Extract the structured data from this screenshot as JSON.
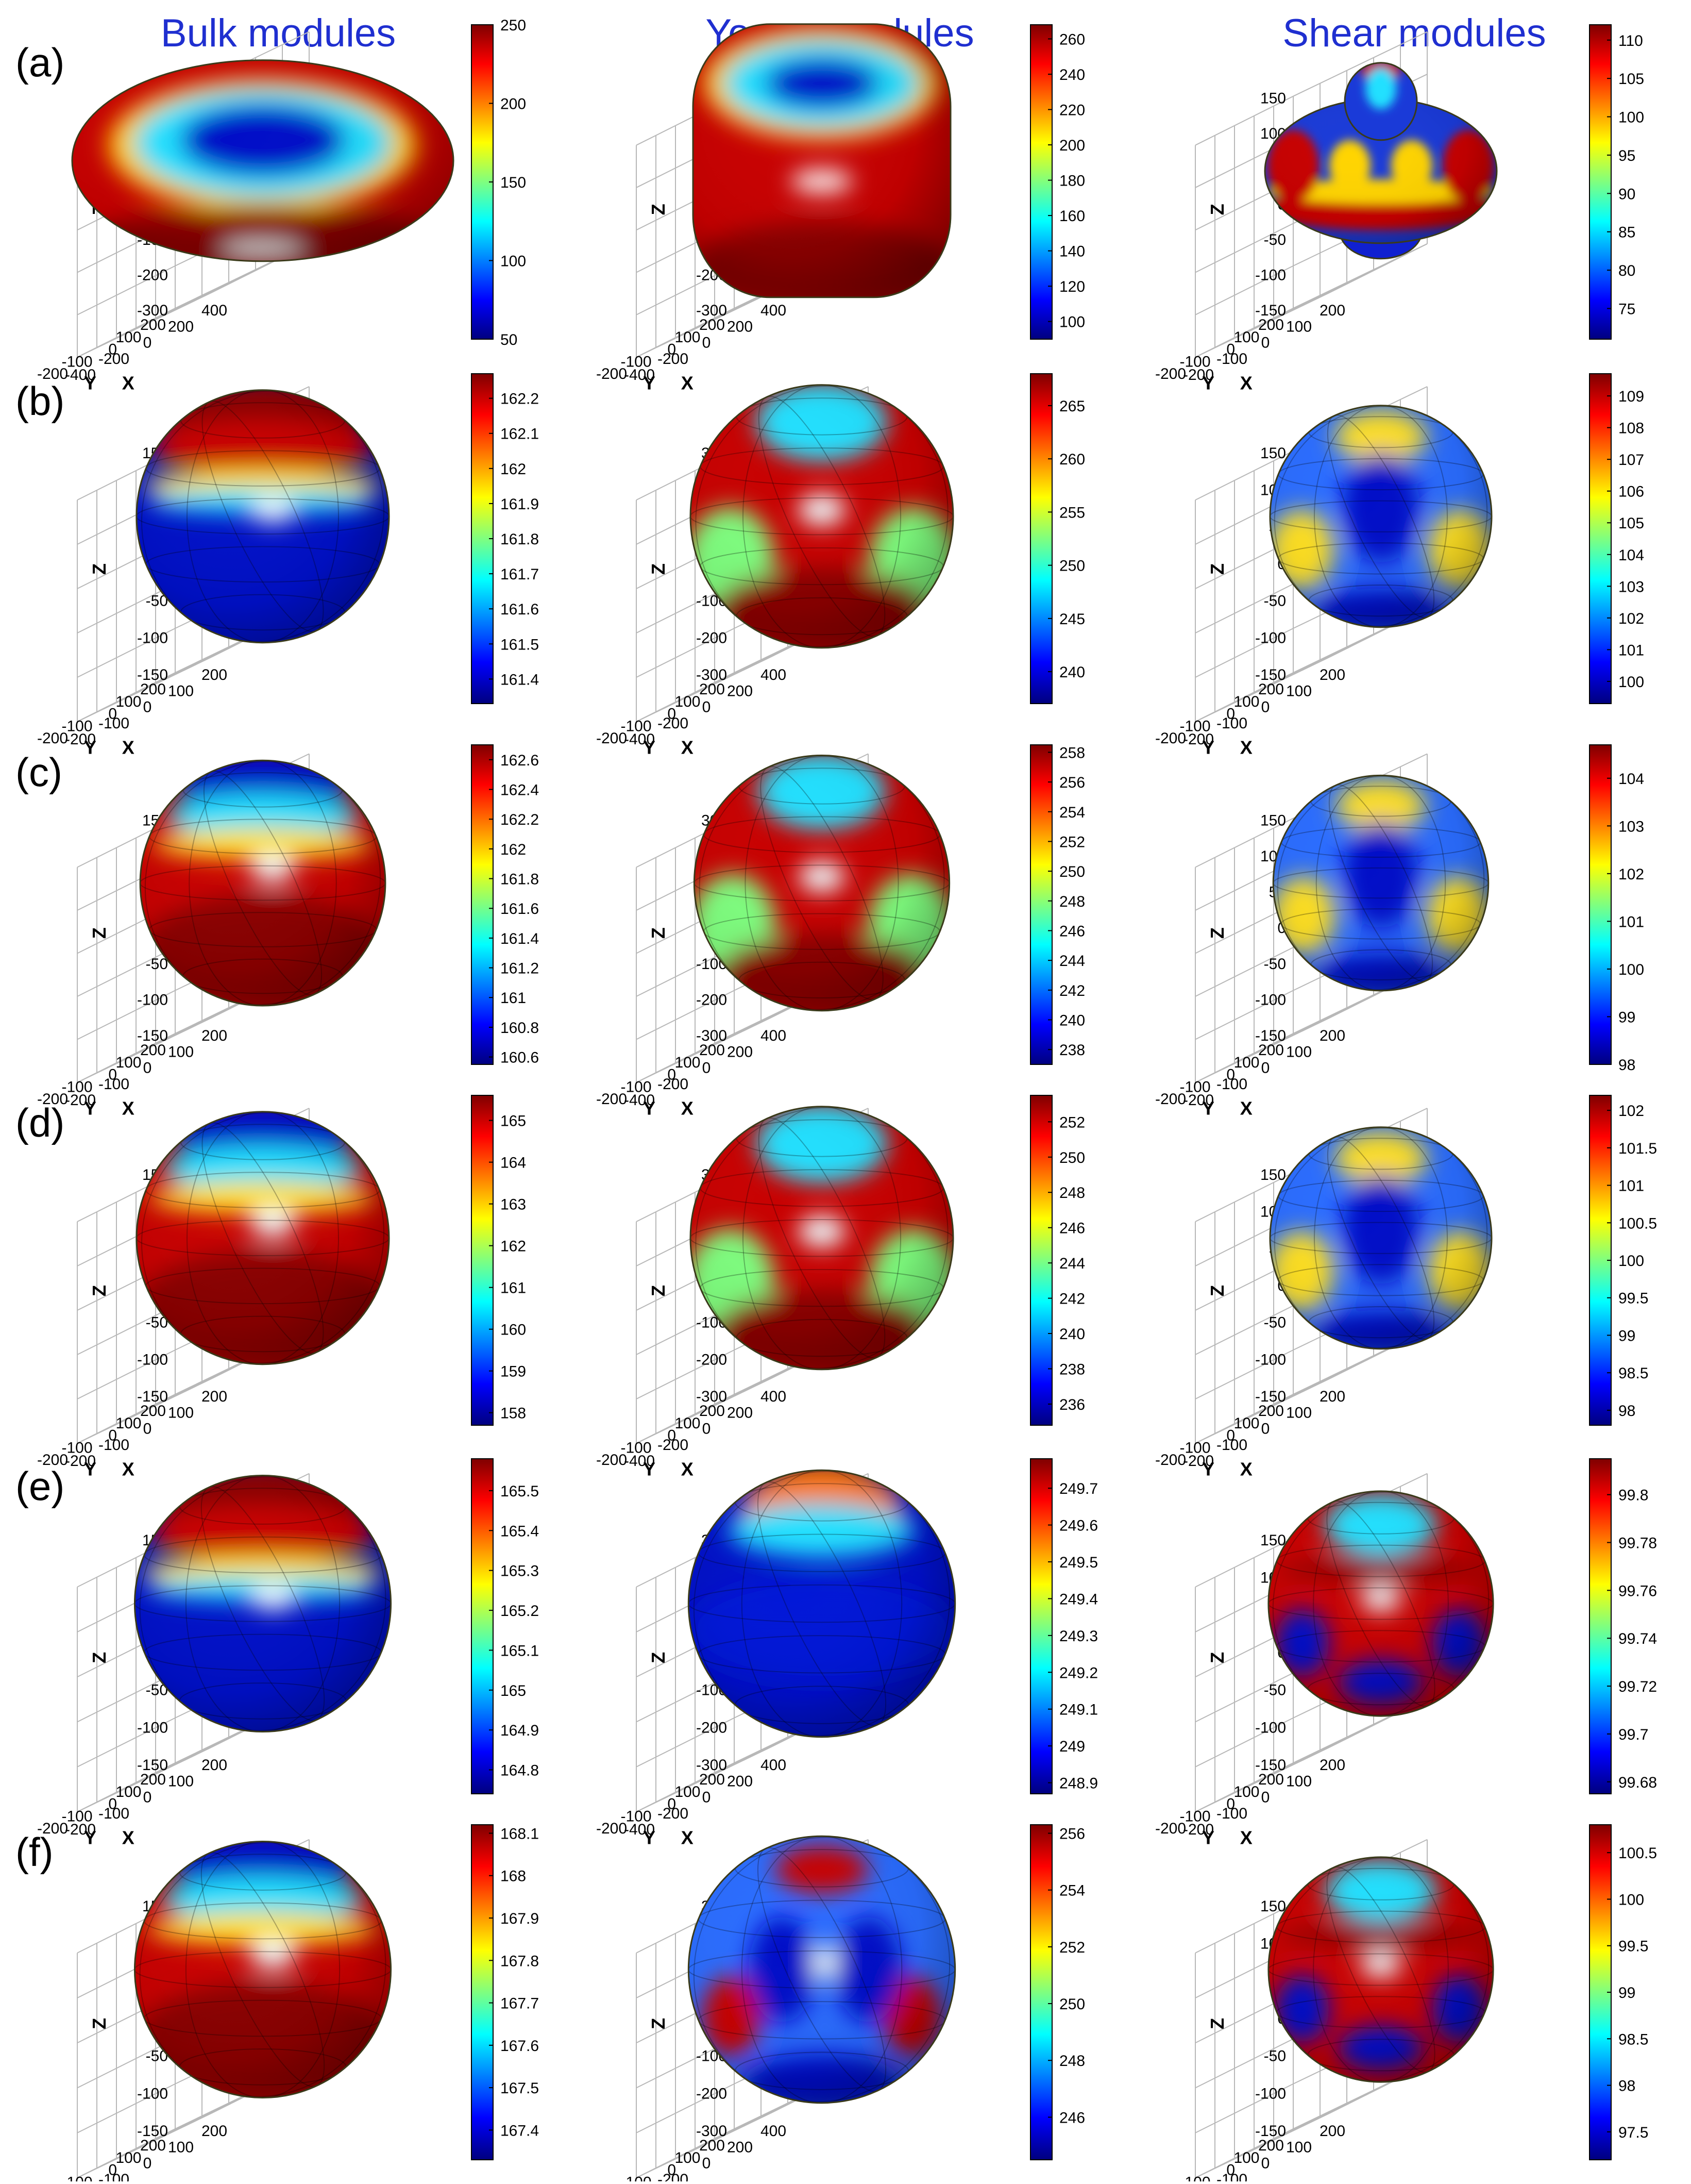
{
  "figure": {
    "column_titles": [
      "Bulk modules",
      "Young modules",
      "Shear modules"
    ],
    "row_labels": [
      "(a)",
      "(b)",
      "(c)",
      "(d)",
      "(e)",
      "(f)"
    ],
    "title_color": "#1f2fd0",
    "colormap": [
      "#00007f",
      "#0000ff",
      "#007fff",
      "#00ffff",
      "#7fff7f",
      "#ffff00",
      "#ff7f00",
      "#ff0000",
      "#7f0000"
    ]
  },
  "chart_data": [
    {
      "type": "surface3d",
      "panel": "(a)",
      "modulus": "Bulk modules",
      "shape": "torus",
      "xlabel": "X",
      "ylabel": "Y",
      "zlabel": "Z",
      "x_ticks": [
        "-400",
        "-200",
        "0",
        "200",
        "400"
      ],
      "y_ticks": [
        "-200",
        "-100",
        "0",
        "100",
        "200"
      ],
      "z_ticks": [
        "300",
        "200",
        "100",
        "0",
        "-100",
        "-200",
        "-300"
      ],
      "colorbar_ticks": [
        "250",
        "200",
        "150",
        "100",
        "50"
      ],
      "colorbar_range": [
        50,
        250
      ]
    },
    {
      "type": "surface3d",
      "panel": "(a)",
      "modulus": "Young modules",
      "shape": "cuboid",
      "xlabel": "X",
      "ylabel": "Y",
      "zlabel": "Z",
      "x_ticks": [
        "-400",
        "-200",
        "0",
        "200",
        "400"
      ],
      "y_ticks": [
        "-200",
        "-100",
        "0",
        "100",
        "200"
      ],
      "z_ticks": [
        "300",
        "200",
        "100",
        "0",
        "-100",
        "-200",
        "-300"
      ],
      "colorbar_ticks": [
        "260",
        "240",
        "220",
        "200",
        "180",
        "160",
        "140",
        "120",
        "100"
      ],
      "colorbar_range": [
        90,
        268
      ]
    },
    {
      "type": "surface3d",
      "panel": "(a)",
      "modulus": "Shear modules",
      "shape": "flower",
      "xlabel": "X",
      "ylabel": "Y",
      "zlabel": "Z",
      "x_ticks": [
        "-200",
        "-100",
        "0",
        "100",
        "200"
      ],
      "y_ticks": [
        "-200",
        "-100",
        "0",
        "100",
        "200"
      ],
      "z_ticks": [
        "150",
        "100",
        "50",
        "0",
        "-50",
        "-100",
        "-150"
      ],
      "colorbar_ticks": [
        "110",
        "105",
        "100",
        "95",
        "90",
        "85",
        "80",
        "75"
      ],
      "colorbar_range": [
        71,
        112
      ]
    },
    {
      "type": "surface3d",
      "panel": "(b)",
      "modulus": "Bulk modules",
      "shape": "sphere",
      "xlabel": "X",
      "ylabel": "Y",
      "zlabel": "Z",
      "x_ticks": [
        "-200",
        "-100",
        "0",
        "100",
        "200"
      ],
      "y_ticks": [
        "-200",
        "-100",
        "0",
        "100",
        "200"
      ],
      "z_ticks": [
        "150",
        "100",
        "50",
        "0",
        "-50",
        "-100",
        "-150"
      ],
      "colorbar_ticks": [
        "162.2",
        "162.1",
        "162",
        "161.9",
        "161.8",
        "161.7",
        "161.6",
        "161.5",
        "161.4"
      ],
      "colorbar_range": [
        161.33,
        162.27
      ]
    },
    {
      "type": "surface3d",
      "panel": "(b)",
      "modulus": "Young modules",
      "shape": "sphere",
      "xlabel": "X",
      "ylabel": "Y",
      "zlabel": "Z",
      "x_ticks": [
        "-400",
        "-200",
        "0",
        "200",
        "400"
      ],
      "y_ticks": [
        "-200",
        "-100",
        "0",
        "100",
        "200"
      ],
      "z_ticks": [
        "300",
        "200",
        "100",
        "0",
        "-100",
        "-200",
        "-300"
      ],
      "colorbar_ticks": [
        "265",
        "260",
        "255",
        "250",
        "245",
        "240"
      ],
      "colorbar_range": [
        237,
        268
      ]
    },
    {
      "type": "surface3d",
      "panel": "(b)",
      "modulus": "Shear modules",
      "shape": "sphere",
      "xlabel": "X",
      "ylabel": "Y",
      "zlabel": "Z",
      "x_ticks": [
        "-200",
        "-100",
        "0",
        "100",
        "200"
      ],
      "y_ticks": [
        "-200",
        "-100",
        "0",
        "100",
        "200"
      ],
      "z_ticks": [
        "150",
        "100",
        "50",
        "0",
        "-50",
        "-100",
        "-150"
      ],
      "colorbar_ticks": [
        "109",
        "108",
        "107",
        "106",
        "105",
        "104",
        "103",
        "102",
        "101",
        "100"
      ],
      "colorbar_range": [
        99.3,
        109.7
      ]
    },
    {
      "type": "surface3d",
      "panel": "(c)",
      "modulus": "Bulk modules",
      "shape": "sphere",
      "xlabel": "X",
      "ylabel": "Y",
      "zlabel": "Z",
      "x_ticks": [
        "-200",
        "-100",
        "0",
        "100",
        "200"
      ],
      "y_ticks": [
        "-200",
        "-100",
        "0",
        "100",
        "200"
      ],
      "z_ticks": [
        "150",
        "100",
        "50",
        "0",
        "-50",
        "-100",
        "-150"
      ],
      "colorbar_ticks": [
        "162.6",
        "162.4",
        "162.2",
        "162",
        "161.8",
        "161.6",
        "161.4",
        "161.2",
        "161",
        "160.8",
        "160.6"
      ],
      "colorbar_range": [
        160.55,
        162.7
      ]
    },
    {
      "type": "surface3d",
      "panel": "(c)",
      "modulus": "Young modules",
      "shape": "sphere",
      "xlabel": "X",
      "ylabel": "Y",
      "zlabel": "Z",
      "x_ticks": [
        "-400",
        "-200",
        "0",
        "200",
        "400"
      ],
      "y_ticks": [
        "-200",
        "-100",
        "0",
        "100",
        "200"
      ],
      "z_ticks": [
        "300",
        "200",
        "100",
        "0",
        "-100",
        "-200",
        "-300"
      ],
      "colorbar_ticks": [
        "258",
        "256",
        "254",
        "252",
        "250",
        "248",
        "246",
        "244",
        "242",
        "240",
        "238"
      ],
      "colorbar_range": [
        237,
        258.5
      ]
    },
    {
      "type": "surface3d",
      "panel": "(c)",
      "modulus": "Shear modules",
      "shape": "sphere",
      "xlabel": "X",
      "ylabel": "Y",
      "zlabel": "Z",
      "x_ticks": [
        "-200",
        "-100",
        "0",
        "100",
        "200"
      ],
      "y_ticks": [
        "-200",
        "-100",
        "0",
        "100",
        "200"
      ],
      "z_ticks": [
        "150",
        "100",
        "50",
        "0",
        "-50",
        "-100",
        "-150"
      ],
      "colorbar_ticks": [
        "104",
        "103",
        "102",
        "101",
        "100",
        "99",
        "98"
      ],
      "colorbar_range": [
        98,
        104.7
      ]
    },
    {
      "type": "surface3d",
      "panel": "(d)",
      "modulus": "Bulk modules",
      "shape": "sphere",
      "xlabel": "X",
      "ylabel": "Y",
      "zlabel": "Z",
      "x_ticks": [
        "-200",
        "-100",
        "0",
        "100",
        "200"
      ],
      "y_ticks": [
        "-200",
        "-100",
        "0",
        "100",
        "200"
      ],
      "z_ticks": [
        "150",
        "100",
        "50",
        "0",
        "-50",
        "-100",
        "-150"
      ],
      "colorbar_ticks": [
        "165",
        "164",
        "163",
        "162",
        "161",
        "160",
        "159",
        "158"
      ],
      "colorbar_range": [
        157.7,
        165.6
      ]
    },
    {
      "type": "surface3d",
      "panel": "(d)",
      "modulus": "Young modules",
      "shape": "sphere",
      "xlabel": "X",
      "ylabel": "Y",
      "zlabel": "Z",
      "x_ticks": [
        "-400",
        "-200",
        "0",
        "200",
        "400"
      ],
      "y_ticks": [
        "-200",
        "-100",
        "0",
        "100",
        "200"
      ],
      "z_ticks": [
        "300",
        "200",
        "100",
        "0",
        "-100",
        "-200",
        "-300"
      ],
      "colorbar_ticks": [
        "252",
        "250",
        "248",
        "246",
        "244",
        "242",
        "240",
        "238",
        "236"
      ],
      "colorbar_range": [
        234.8,
        253.5
      ]
    },
    {
      "type": "surface3d",
      "panel": "(d)",
      "modulus": "Shear modules",
      "shape": "sphere",
      "xlabel": "X",
      "ylabel": "Y",
      "zlabel": "Z",
      "x_ticks": [
        "-200",
        "-100",
        "0",
        "100",
        "200"
      ],
      "y_ticks": [
        "-200",
        "-100",
        "0",
        "100",
        "200"
      ],
      "z_ticks": [
        "150",
        "100",
        "50",
        "0",
        "-50",
        "-100",
        "-150"
      ],
      "colorbar_ticks": [
        "102",
        "101.5",
        "101",
        "100.5",
        "100",
        "99.5",
        "99",
        "98.5",
        "98"
      ],
      "colorbar_range": [
        97.8,
        102.2
      ]
    },
    {
      "type": "surface3d",
      "panel": "(e)",
      "modulus": "Bulk modules",
      "shape": "sphere",
      "xlabel": "X",
      "ylabel": "Y",
      "zlabel": "Z",
      "x_ticks": [
        "-200",
        "-100",
        "0",
        "100",
        "200"
      ],
      "y_ticks": [
        "-200",
        "-100",
        "0",
        "100",
        "200"
      ],
      "z_ticks": [
        "150",
        "100",
        "50",
        "0",
        "-50",
        "-100",
        "-150"
      ],
      "colorbar_ticks": [
        "165.5",
        "165.4",
        "165.3",
        "165.2",
        "165.1",
        "165",
        "164.9",
        "164.8"
      ],
      "colorbar_range": [
        164.74,
        165.58
      ]
    },
    {
      "type": "surface3d",
      "panel": "(e)",
      "modulus": "Young modules",
      "shape": "sphere",
      "xlabel": "X",
      "ylabel": "Y",
      "zlabel": "Z",
      "x_ticks": [
        "-400",
        "-200",
        "0",
        "200",
        "400"
      ],
      "y_ticks": [
        "-200",
        "-100",
        "0",
        "100",
        "200"
      ],
      "z_ticks": [
        "300",
        "200",
        "100",
        "0",
        "-100",
        "-200",
        "-300"
      ],
      "colorbar_ticks": [
        "249.7",
        "249.6",
        "249.5",
        "249.4",
        "249.3",
        "249.2",
        "249.1",
        "249",
        "248.9"
      ],
      "colorbar_range": [
        248.87,
        249.78
      ]
    },
    {
      "type": "surface3d",
      "panel": "(e)",
      "modulus": "Shear modules",
      "shape": "sphere",
      "xlabel": "X",
      "ylabel": "Y",
      "zlabel": "Z",
      "x_ticks": [
        "-200",
        "-100",
        "0",
        "100",
        "200"
      ],
      "y_ticks": [
        "-200",
        "-100",
        "0",
        "100",
        "200"
      ],
      "z_ticks": [
        "150",
        "100",
        "50",
        "0",
        "-50",
        "-100",
        "-150"
      ],
      "colorbar_ticks": [
        "99.8",
        "99.78",
        "99.76",
        "99.74",
        "99.72",
        "99.7",
        "99.68"
      ],
      "colorbar_range": [
        99.675,
        99.815
      ]
    },
    {
      "type": "surface3d",
      "panel": "(f)",
      "modulus": "Bulk modules",
      "shape": "sphere",
      "xlabel": "X",
      "ylabel": "Y",
      "zlabel": "Z",
      "x_ticks": [
        "-200",
        "-100",
        "0",
        "100",
        "200"
      ],
      "y_ticks": [
        "-200",
        "-100",
        "0",
        "100",
        "200"
      ],
      "z_ticks": [
        "150",
        "100",
        "50",
        "0",
        "-50",
        "-100",
        "-150"
      ],
      "colorbar_ticks": [
        "168.1",
        "168",
        "167.9",
        "167.8",
        "167.7",
        "167.6",
        "167.5",
        "167.4"
      ],
      "colorbar_range": [
        167.33,
        168.12
      ]
    },
    {
      "type": "surface3d",
      "panel": "(f)",
      "modulus": "Young modules",
      "shape": "sphere",
      "xlabel": "X",
      "ylabel": "Y",
      "zlabel": "Z",
      "x_ticks": [
        "-400",
        "-200",
        "0",
        "200",
        "400"
      ],
      "y_ticks": [
        "-200",
        "-100",
        "0",
        "100",
        "200"
      ],
      "z_ticks": [
        "300",
        "200",
        "100",
        "0",
        "-100",
        "-200",
        "-300"
      ],
      "colorbar_ticks": [
        "256",
        "254",
        "252",
        "250",
        "248",
        "246"
      ],
      "colorbar_range": [
        244.5,
        256.3
      ]
    },
    {
      "type": "surface3d",
      "panel": "(f)",
      "modulus": "Shear modules",
      "shape": "sphere",
      "xlabel": "X",
      "ylabel": "Y",
      "zlabel": "Z",
      "x_ticks": [
        "-200",
        "-100",
        "0",
        "100",
        "200"
      ],
      "y_ticks": [
        "-200",
        "-100",
        "0",
        "100",
        "200"
      ],
      "z_ticks": [
        "150",
        "100",
        "50",
        "0",
        "-50",
        "-100",
        "-150"
      ],
      "colorbar_ticks": [
        "100.5",
        "100",
        "99.5",
        "99",
        "98.5",
        "98",
        "97.5"
      ],
      "colorbar_range": [
        97.2,
        100.8
      ]
    }
  ]
}
